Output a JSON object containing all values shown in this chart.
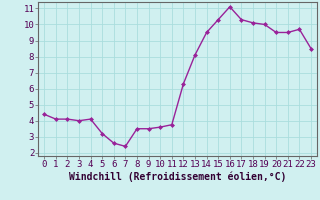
{
  "x": [
    0,
    1,
    2,
    3,
    4,
    5,
    6,
    7,
    8,
    9,
    10,
    11,
    12,
    13,
    14,
    15,
    16,
    17,
    18,
    19,
    20,
    21,
    22,
    23
  ],
  "y": [
    4.4,
    4.1,
    4.1,
    4.0,
    4.1,
    3.2,
    2.6,
    2.4,
    3.5,
    3.5,
    3.6,
    3.75,
    6.3,
    8.1,
    9.5,
    10.3,
    11.1,
    10.3,
    10.1,
    10.0,
    9.5,
    9.5,
    9.7,
    8.5
  ],
  "line_color": "#992299",
  "marker": "D",
  "marker_size": 2.0,
  "line_width": 1.0,
  "xlabel": "Windchill (Refroidissement éolien,°C)",
  "xlabel_fontsize": 7,
  "xlim": [
    -0.5,
    23.5
  ],
  "ylim": [
    1.8,
    11.4
  ],
  "yticks": [
    2,
    3,
    4,
    5,
    6,
    7,
    8,
    9,
    10,
    11
  ],
  "xticks": [
    0,
    1,
    2,
    3,
    4,
    5,
    6,
    7,
    8,
    9,
    10,
    11,
    12,
    13,
    14,
    15,
    16,
    17,
    18,
    19,
    20,
    21,
    22,
    23
  ],
  "grid_color": "#aadddd",
  "bg_color": "#d0f0f0",
  "tick_fontsize": 6.5,
  "fig_bg": "#d0f0f0",
  "spine_color": "#666666"
}
